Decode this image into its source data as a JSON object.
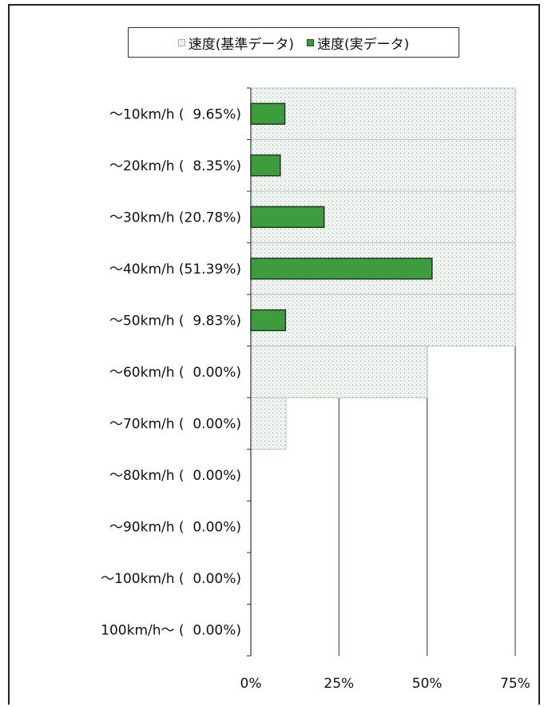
{
  "chart_data": {
    "type": "bar",
    "orientation": "horizontal",
    "categories": [
      "～10km/h (  9.65%)",
      "～20km/h (  8.35%)",
      "～30km/h (20.78%)",
      "～40km/h (51.39%)",
      "～50km/h (  9.83%)",
      "～60km/h (  0.00%)",
      "～70km/h (  0.00%)",
      "～80km/h (  0.00%)",
      "～90km/h (  0.00%)",
      "～100km/h (  0.00%)",
      "100km/h～ (  0.00%)"
    ],
    "series": [
      {
        "name": "速度(基準データ)",
        "values": [
          75,
          75,
          75,
          75,
          75,
          50,
          10,
          0,
          0,
          0,
          0
        ],
        "color": "#e9f0ea"
      },
      {
        "name": "速度(実データ)",
        "values": [
          9.65,
          8.35,
          20.78,
          51.39,
          9.83,
          0,
          0,
          0,
          0,
          0,
          0
        ],
        "color": "#3e9b3e"
      }
    ],
    "xlim": [
      0,
      75
    ],
    "xticks": [
      "0%",
      "25%",
      "50%",
      "75%"
    ],
    "gridlines": "vertical",
    "legend": "top"
  }
}
